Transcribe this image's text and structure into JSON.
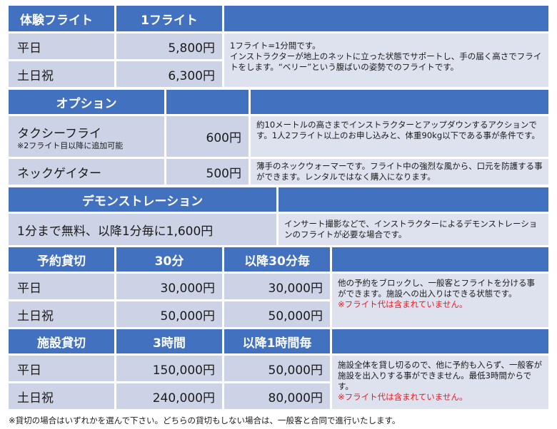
{
  "flight": {
    "header_title": "体験フライト",
    "header_col": "1フライト",
    "rows": [
      {
        "label": "平日",
        "price": "5,800円"
      },
      {
        "label": "土日祝",
        "price": "6,300円"
      }
    ],
    "desc_1": "1フライト=1分間です。",
    "desc_2": "インストラクターが地上のネットに立った状態でサポートし、手の届く高さでフライトをします。“ベリー”という腹ばいの姿勢でのフライトです。"
  },
  "option": {
    "header_title": "オプション",
    "taxi_label": "タクシーフライ",
    "taxi_note": "※2フライト目以降に追加可能",
    "taxi_price": "600円",
    "taxi_desc": "約10メートルの高さまでインストラクターとアップダウンするアクションです。1人2フライト以上のお申し込みと、体重90kg以下である事が条件です。",
    "neck_label": "ネックゲイター",
    "neck_price": "500円",
    "neck_desc": "薄手のネックウォーマーです。フライト中の強烈な風から、口元を防護する事ができます。レンタルではなく購入になります。"
  },
  "demo": {
    "header_title": "デモンストレーション",
    "price_text": "1分まで無料、以降1分毎に1,600円",
    "desc": "インサート撮影などで、インストラクターによるデモンストレーションのフライトが必要な場合です。"
  },
  "reserve": {
    "header_title": "予約貸切",
    "col_1": "30分",
    "col_2": "以降30分毎",
    "rows": [
      {
        "label": "平日",
        "v1": "30,000円",
        "v2": "30,000円"
      },
      {
        "label": "土日祝",
        "v1": "50,000円",
        "v2": "50,000円"
      }
    ],
    "desc": "他の予約をブロックし、一般客とフライトを分ける事ができます。施設への出入りはできる状態です。",
    "note": "※フライト代は含まれていません。"
  },
  "facility": {
    "header_title": "施設貸切",
    "col_1": "3時間",
    "col_2": "以降1時間毎",
    "rows": [
      {
        "label": "平日",
        "v1": "150,000円",
        "v2": "50,000円"
      },
      {
        "label": "土日祝",
        "v1": "240,000円",
        "v2": "80,000円"
      }
    ],
    "desc": "施設全体を貸し切るので、他に予約も入らず、一般客が施設を出入りする事ができません。最低3時間からです。",
    "note": "※フライト代は含まれていません。"
  },
  "footnote": "※貸切の場合はいずれかを選んで下さい。どちらの貸切もしない場合は、一般客と合同で進行いたします。",
  "colors": {
    "header_blue": "#4271c0",
    "cell_light": "#cdd3e6",
    "desc_light": "#dde2ee",
    "note_red": "#e8191f"
  }
}
